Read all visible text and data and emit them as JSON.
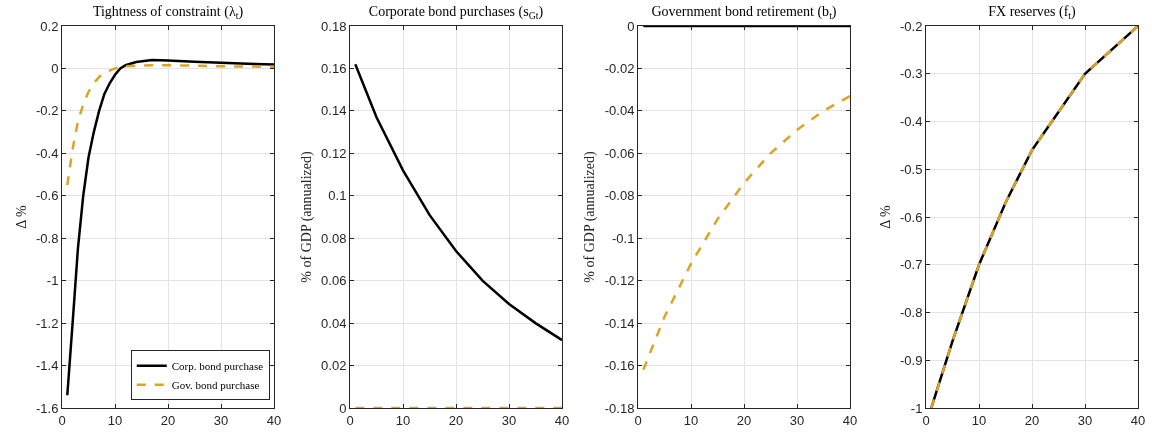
{
  "chart_data": [
    {
      "type": "line",
      "title": "Tightness of constraint (λ$_{t}$)",
      "ylabel": "Δ %",
      "x": [
        1,
        2,
        3,
        4,
        5,
        6,
        7,
        8,
        9,
        10,
        11,
        12,
        14,
        17,
        20,
        25,
        30,
        35,
        40
      ],
      "xlim": [
        0,
        40
      ],
      "xticks": [
        0,
        10,
        20,
        30,
        40
      ],
      "ylim": [
        -1.6,
        0.2
      ],
      "yticks": [
        -1.6,
        -1.4,
        -1.2,
        -1,
        -0.8,
        -0.6,
        -0.4,
        -0.2,
        0,
        0.2
      ],
      "grid": true,
      "legend": "bottom right",
      "marker": "none",
      "series": [
        {
          "name": "Corp. bond purchase",
          "color": "#000000",
          "line_style": "solid",
          "values": [
            -1.54,
            -1.2,
            -0.85,
            -0.6,
            -0.42,
            -0.3,
            -0.2,
            -0.12,
            -0.07,
            -0.03,
            0,
            0.015,
            0.03,
            0.04,
            0.038,
            0.032,
            0.027,
            0.022,
            0.018
          ]
        },
        {
          "name": "Gov. bond purchase",
          "color": "#dba425",
          "line_style": "dashed",
          "values": [
            -0.55,
            -0.38,
            -0.25,
            -0.17,
            -0.11,
            -0.07,
            -0.04,
            -0.02,
            -0.01,
            0,
            0.005,
            0.01,
            0.013,
            0.015,
            0.015,
            0.013,
            0.01,
            0.009,
            0.008
          ]
        }
      ]
    },
    {
      "type": "line",
      "title": "Corporate bond purchases (s$_{Gt}$)",
      "ylabel": "% of GDP (annualized)",
      "x": [
        1,
        5,
        10,
        15,
        20,
        25,
        30,
        35,
        40
      ],
      "xlim": [
        0,
        40
      ],
      "xticks": [
        0,
        10,
        20,
        30,
        40
      ],
      "ylim": [
        0,
        0.18
      ],
      "yticks": [
        0,
        0.02,
        0.04,
        0.06,
        0.08,
        0.1,
        0.12,
        0.14,
        0.16,
        0.18
      ],
      "grid": true,
      "legend": false,
      "marker": "none",
      "series": [
        {
          "color": "#000000",
          "line_style": "solid",
          "values": [
            0.162,
            0.137,
            0.112,
            0.091,
            0.074,
            0.06,
            0.049,
            0.04,
            0.032
          ]
        },
        {
          "color": "#dba425",
          "line_style": "dashed",
          "values": [
            0,
            0,
            0,
            0,
            0,
            0,
            0,
            0,
            0
          ]
        }
      ]
    },
    {
      "type": "line",
      "title": "Government bond retirement (b$_{t}$)",
      "ylabel": "% of GDP (annualized)",
      "x": [
        1,
        5,
        10,
        15,
        20,
        25,
        30,
        35,
        40
      ],
      "xlim": [
        0,
        40
      ],
      "xticks": [
        0,
        10,
        20,
        30,
        40
      ],
      "ylim": [
        -0.18,
        0
      ],
      "yticks": [
        -0.18,
        -0.16,
        -0.14,
        -0.12,
        -0.1,
        -0.08,
        -0.06,
        -0.04,
        -0.02,
        0
      ],
      "grid": true,
      "legend": false,
      "marker": "none",
      "series": [
        {
          "color": "#000000",
          "line_style": "solid",
          "values": [
            0,
            0,
            0,
            0,
            0,
            0,
            0,
            0,
            0
          ]
        },
        {
          "color": "#dba425",
          "line_style": "dashed",
          "values": [
            -0.162,
            -0.137,
            -0.112,
            -0.091,
            -0.074,
            -0.06,
            -0.049,
            -0.04,
            -0.033
          ]
        }
      ]
    },
    {
      "type": "line",
      "title": "FX reserves (f$_{t}$)",
      "ylabel": "Δ %",
      "x": [
        1,
        5,
        10,
        15,
        20,
        25,
        30,
        35,
        40
      ],
      "xlim": [
        0,
        40
      ],
      "xticks": [
        0,
        10,
        20,
        30,
        40
      ],
      "ylim": [
        -1,
        -0.2
      ],
      "yticks": [
        -1,
        -0.9,
        -0.8,
        -0.7,
        -0.6,
        -0.5,
        -0.4,
        -0.3,
        -0.2
      ],
      "grid": true,
      "legend": false,
      "marker": "none",
      "series": [
        {
          "color": "#000000",
          "line_style": "solid",
          "values": [
            -1,
            -0.86,
            -0.7,
            -0.57,
            -0.46,
            -0.38,
            -0.3,
            -0.25,
            -0.2
          ]
        },
        {
          "color": "#dba425",
          "line_style": "dashed",
          "values": [
            -1,
            -0.86,
            -0.7,
            -0.57,
            -0.46,
            -0.38,
            -0.3,
            -0.25,
            -0.2
          ]
        }
      ]
    }
  ]
}
